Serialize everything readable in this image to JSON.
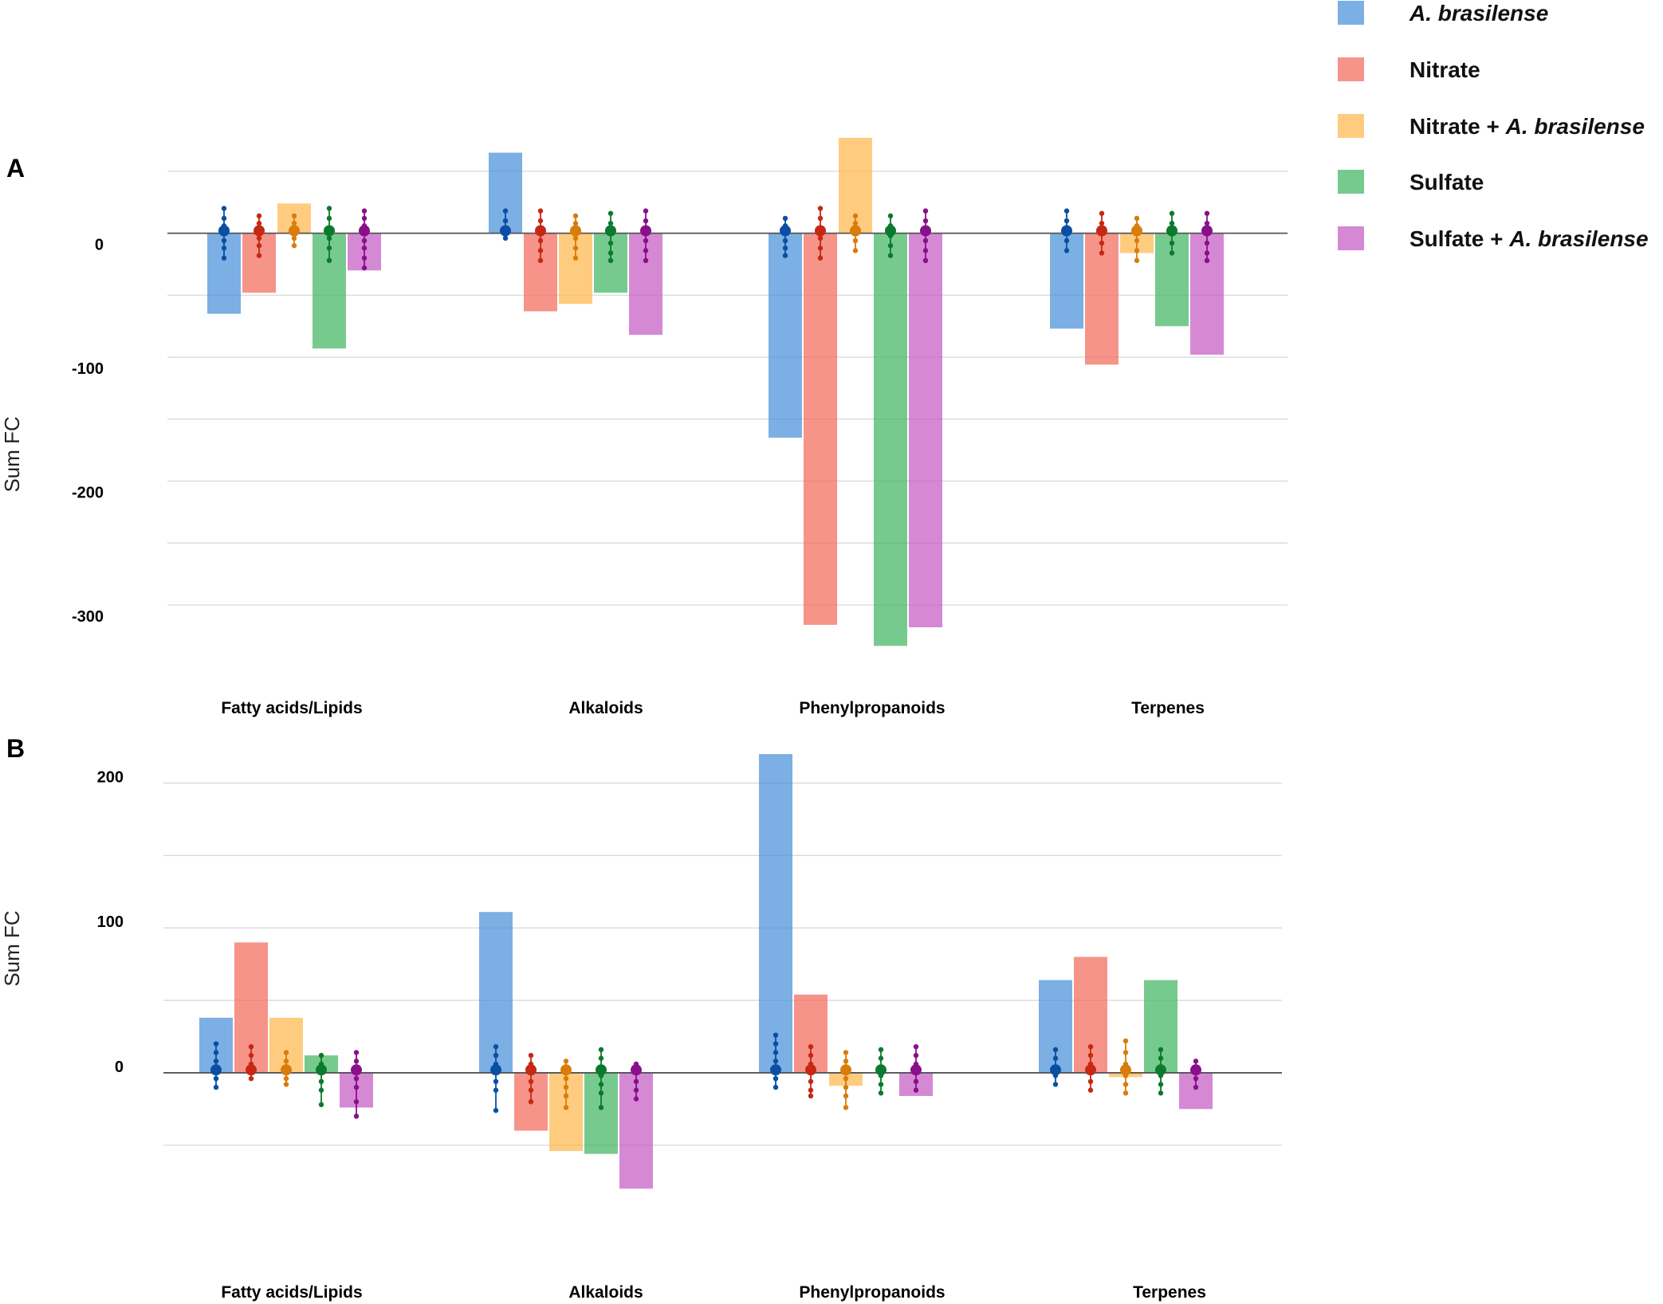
{
  "colors": {
    "bars": [
      "#4a90d9",
      "#f26b5b",
      "#ffb84d",
      "#43b563",
      "#c55cc5"
    ],
    "dots": [
      "#0a4fa3",
      "#c62814",
      "#d97c0a",
      "#0b7a2c",
      "#8a0f8a"
    ],
    "grid": "#d9d9d9",
    "zero": "#555555"
  },
  "legend": [
    {
      "parts": [
        {
          "t": "A.  brasilense",
          "i": true
        }
      ]
    },
    {
      "parts": [
        {
          "t": "Nitrate",
          "i": false
        }
      ]
    },
    {
      "parts": [
        {
          "t": "Nitrate + ",
          "i": false
        },
        {
          "t": "A. brasilense",
          "i": true
        }
      ]
    },
    {
      "parts": [
        {
          "t": "Sulfate",
          "i": false
        }
      ]
    },
    {
      "parts": [
        {
          "t": "Sulfate + ",
          "i": false
        },
        {
          "t": "A. brasilense",
          "i": true
        }
      ]
    }
  ],
  "chart_data": [
    {
      "type": "bar",
      "panel": "A",
      "ylabel": "Sum FC",
      "ylim": [
        -345,
        75
      ],
      "gridlines": [
        50,
        0,
        -50,
        -100,
        -150,
        -200,
        -250,
        -300
      ],
      "ticks": [
        {
          "v": 0,
          "label": "0"
        },
        {
          "v": -100,
          "label": "-100"
        },
        {
          "v": -200,
          "label": "-200"
        },
        {
          "v": -300,
          "label": "-300"
        }
      ],
      "categories": [
        "Fatty acids/Lipids",
        "Alkaloids",
        "Phenylpropanoids",
        "Terpenes"
      ],
      "series": [
        {
          "name": "A. brasilense",
          "values": [
            -65,
            65,
            -165,
            -77
          ],
          "dots": [
            [
              20,
              12,
              6,
              0,
              -6,
              -12,
              -20
            ],
            [
              18,
              10,
              2,
              -4
            ],
            [
              12,
              6,
              0,
              -6,
              -12,
              -18
            ],
            [
              18,
              10,
              2,
              -6,
              -14
            ]
          ]
        },
        {
          "name": "Nitrate",
          "values": [
            -48,
            -63,
            -316,
            -106
          ],
          "dots": [
            [
              14,
              8,
              2,
              -4,
              -10,
              -18
            ],
            [
              18,
              10,
              2,
              -6,
              -14,
              -22
            ],
            [
              20,
              12,
              4,
              -4,
              -12,
              -20
            ],
            [
              16,
              8,
              0,
              -8,
              -16
            ]
          ]
        },
        {
          "name": "Nitrate + A. brasilense",
          "values": [
            24,
            -57,
            77,
            -16
          ],
          "dots": [
            [
              14,
              8,
              2,
              -4,
              -10
            ],
            [
              14,
              8,
              2,
              -4,
              -12,
              -20
            ],
            [
              14,
              8,
              2,
              -6,
              -14
            ],
            [
              12,
              6,
              0,
              -6,
              -14,
              -22
            ]
          ]
        },
        {
          "name": "Sulfate",
          "values": [
            -93,
            -48,
            -333,
            -75
          ],
          "dots": [
            [
              20,
              12,
              4,
              -4,
              -12,
              -22
            ],
            [
              16,
              8,
              0,
              -8,
              -16,
              -22
            ],
            [
              14,
              6,
              -2,
              -10,
              -18
            ],
            [
              16,
              8,
              0,
              -8,
              -16
            ]
          ]
        },
        {
          "name": "Sulfate + A. brasilense",
          "values": [
            -30,
            -82,
            -318,
            -98
          ],
          "dots": [
            [
              18,
              12,
              6,
              0,
              -6,
              -12,
              -20,
              -28
            ],
            [
              18,
              10,
              2,
              -6,
              -14,
              -22
            ],
            [
              18,
              10,
              2,
              -6,
              -14,
              -22
            ],
            [
              16,
              8,
              0,
              -8,
              -16,
              -22
            ]
          ]
        }
      ]
    },
    {
      "type": "bar",
      "panel": "B",
      "ylabel": "Sum FC",
      "ylim": [
        -120,
        225
      ],
      "gridlines": [
        200,
        150,
        100,
        50,
        0,
        -50
      ],
      "ticks": [
        {
          "v": 200,
          "label": "200"
        },
        {
          "v": 100,
          "label": "100"
        },
        {
          "v": 0,
          "label": "0"
        }
      ],
      "categories": [
        "Fatty acids/Lipids",
        "Alkaloids",
        "Phenylpropanoids",
        "Terpenes"
      ],
      "series": [
        {
          "name": "A. brasilense",
          "values": [
            38,
            111,
            220,
            64
          ],
          "dots": [
            [
              20,
              14,
              8,
              2,
              -4,
              -10
            ],
            [
              18,
              12,
              6,
              0,
              -6,
              -12,
              -26
            ],
            [
              26,
              20,
              14,
              8,
              2,
              -4,
              -10
            ],
            [
              16,
              10,
              4,
              -2,
              -8
            ]
          ]
        },
        {
          "name": "Nitrate",
          "values": [
            90,
            -40,
            54,
            80
          ],
          "dots": [
            [
              18,
              12,
              6,
              0,
              -4
            ],
            [
              12,
              6,
              0,
              -6,
              -12,
              -20
            ],
            [
              18,
              12,
              6,
              0,
              -6,
              -12,
              -16
            ],
            [
              18,
              12,
              6,
              0,
              -6,
              -12
            ]
          ]
        },
        {
          "name": "Nitrate + A. brasilense",
          "values": [
            38,
            -54,
            -9,
            -3
          ],
          "dots": [
            [
              14,
              8,
              2,
              -4,
              -8
            ],
            [
              8,
              2,
              -4,
              -10,
              -16,
              -24
            ],
            [
              14,
              8,
              2,
              -4,
              -10,
              -16,
              -24
            ],
            [
              22,
              14,
              6,
              -2,
              -8,
              -14
            ]
          ]
        },
        {
          "name": "Sulfate",
          "values": [
            12,
            -56,
            0,
            64
          ],
          "dots": [
            [
              12,
              6,
              0,
              -6,
              -12,
              -22
            ],
            [
              16,
              10,
              4,
              -2,
              -8,
              -14,
              -24
            ],
            [
              16,
              10,
              4,
              -2,
              -8,
              -14
            ],
            [
              16,
              10,
              4,
              -2,
              -8,
              -14
            ]
          ]
        },
        {
          "name": "Sulfate + A. brasilense",
          "values": [
            -24,
            -80,
            -16,
            -25
          ],
          "dots": [
            [
              14,
              8,
              2,
              -4,
              -10,
              -20,
              -30
            ],
            [
              6,
              0,
              -6,
              -12,
              -18
            ],
            [
              18,
              12,
              6,
              0,
              -6,
              -12
            ],
            [
              8,
              2,
              -4,
              -10
            ]
          ]
        }
      ]
    }
  ]
}
